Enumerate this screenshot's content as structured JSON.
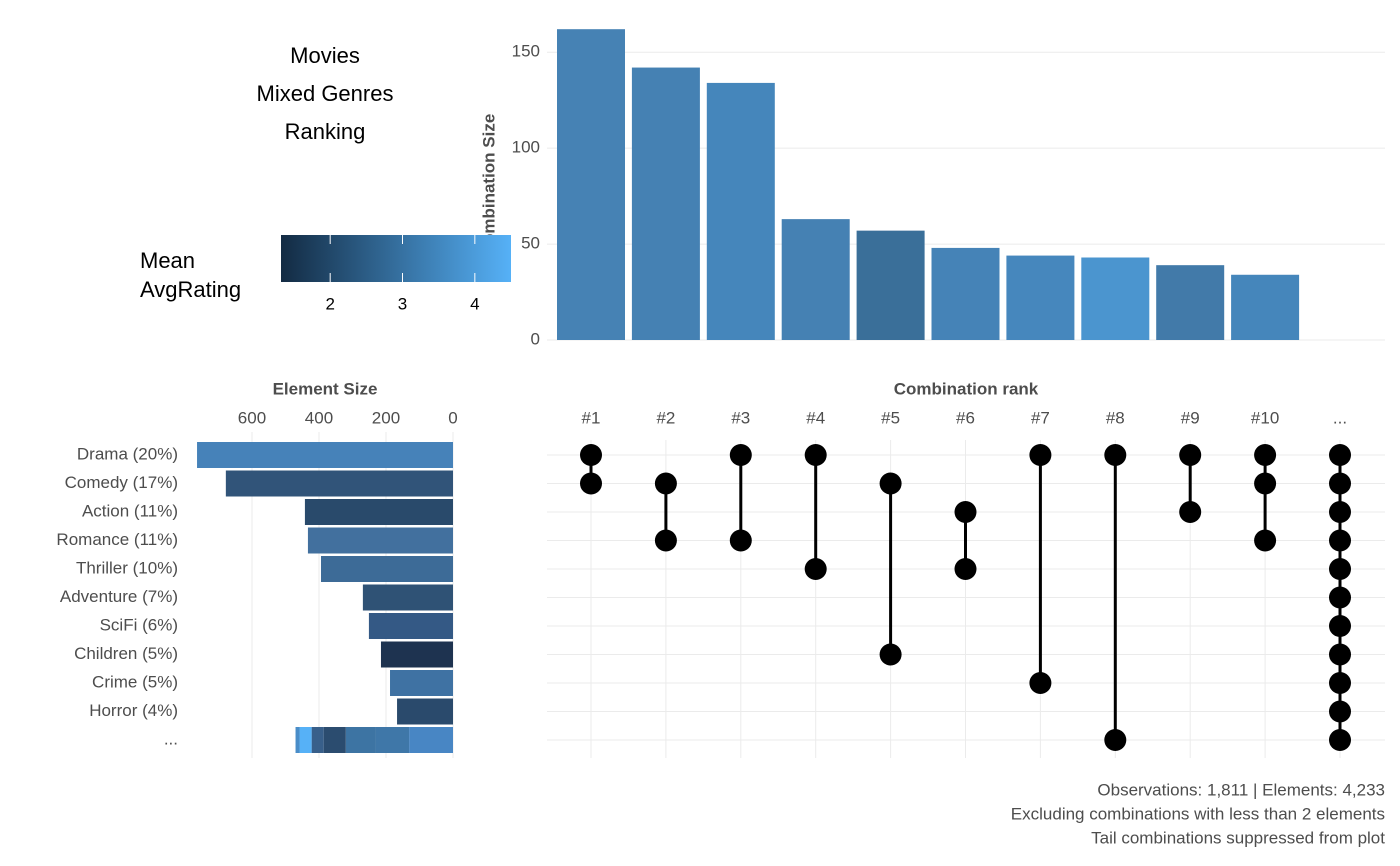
{
  "chart_data": {
    "type": "upset",
    "title": [
      "Movies",
      "Mixed Genres",
      "Ranking"
    ],
    "color_scale": {
      "title": [
        "Mean",
        "AvgRating"
      ],
      "lim": [
        1.32,
        4.5
      ],
      "ticks": [
        2,
        3,
        4
      ],
      "colors": [
        "#132b43",
        "#56b1f7"
      ]
    },
    "combination_size": {
      "ylabel": "Combination Size",
      "categories": [
        "#1",
        "#2",
        "#3",
        "#4",
        "#5",
        "#6",
        "#7",
        "#8",
        "#9",
        "#10",
        "..."
      ],
      "values": [
        162,
        142,
        134,
        63,
        57,
        48,
        44,
        43,
        39,
        34,
        null
      ],
      "colors": [
        "#4682b4",
        "#4581b3",
        "#4586bb",
        "#4581b3",
        "#3a6f99",
        "#4583b7",
        "#4687bd",
        "#4b95cf",
        "#427aa9",
        "#4586bb",
        null
      ],
      "ylim": [
        0,
        172
      ],
      "yticks": [
        0,
        50,
        100,
        150
      ],
      "grid": true
    },
    "matrix": {
      "xlabel": "Combination rank",
      "combinations": [
        [
          0,
          1
        ],
        [
          1,
          3
        ],
        [
          0,
          3
        ],
        [
          0,
          4
        ],
        [
          1,
          7
        ],
        [
          2,
          4
        ],
        [
          0,
          8
        ],
        [
          0,
          10
        ],
        [
          0,
          2
        ],
        [
          0,
          1,
          3
        ],
        [
          0,
          1,
          2,
          3,
          4,
          5,
          6,
          7,
          8,
          9,
          10
        ]
      ]
    },
    "element_size": {
      "xlabel": "Element Size",
      "categories": [
        "Drama (20%)",
        "Comedy (17%)",
        "Action (11%)",
        "Romance (11%)",
        "Thriller (10%)",
        "Adventure (7%)",
        "SciFi (6%)",
        "Children (5%)",
        "Crime (5%)",
        "Horror (4%)",
        "..."
      ],
      "values": [
        764,
        678,
        442,
        433,
        394,
        269,
        251,
        215,
        188,
        167,
        null
      ],
      "colors": [
        "#4682b9",
        "#315479",
        "#294a6b",
        "#42709e",
        "#3d6b97",
        "#2f5275",
        "#345985",
        "#1e3350",
        "#3f72a3",
        "#2a4a6c",
        null
      ],
      "tail_values": [
        131,
        99,
        90,
        66,
        36,
        36,
        12
      ],
      "tail_colors": [
        "#4886c4",
        "#3f77a8",
        "#3d74a3",
        "#2b4c6f",
        "#385f8a",
        "#56b1f7",
        "#4a8dc8"
      ],
      "xlim": [
        785,
        0
      ],
      "xticks": [
        600,
        400,
        200,
        0
      ],
      "grid": true
    },
    "caption": [
      "Observations: 1,811 | Elements: 4,233",
      "Excluding combinations with less than 2 elements",
      "Tail combinations suppressed from plot"
    ]
  }
}
